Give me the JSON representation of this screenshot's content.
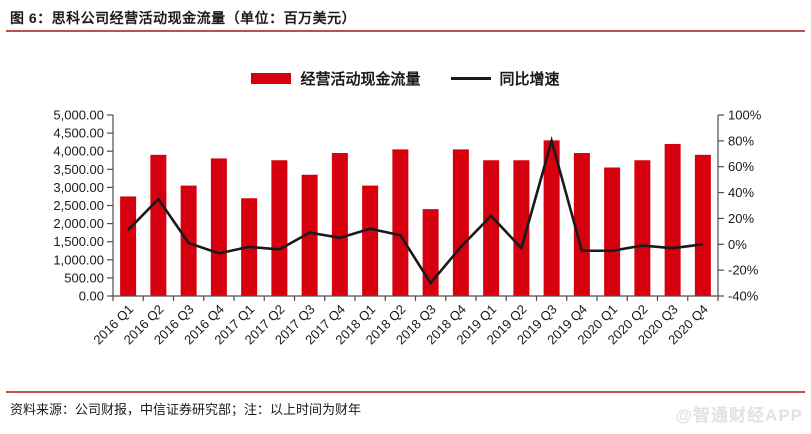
{
  "title": "图 6：思科公司经营活动现金流量（单位：百万美元）",
  "legend": {
    "bar_label": "经营活动现金流量",
    "line_label": "同比增速"
  },
  "footer": {
    "source": "资料来源：公司财报，中信证券研究部；注：以上时间为财年",
    "watermark": "@智通财经APP"
  },
  "colors": {
    "bar": "#d7000f",
    "line": "#1a1a1a",
    "accent_rule": "#c0504d",
    "axis": "#4d4d4d",
    "tick_text": "#1a1a1a",
    "watermark": "#e2e2e2"
  },
  "chart_data": {
    "type": "bar+line",
    "title": "图 6：思科公司经营活动现金流量（单位：百万美元）",
    "categories": [
      "2016 Q1",
      "2016 Q2",
      "2016 Q3",
      "2016 Q4",
      "2017 Q1",
      "2017 Q2",
      "2017 Q3",
      "2017 Q4",
      "2018 Q1",
      "2018 Q2",
      "2018 Q3",
      "2018 Q4",
      "2019 Q1",
      "2019 Q2",
      "2019 Q3",
      "2019 Q4",
      "2020 Q1",
      "2020 Q2",
      "2020 Q3",
      "2020 Q4"
    ],
    "series": [
      {
        "name": "经营活动现金流量",
        "type": "bar",
        "yaxis": "left",
        "values": [
          2750,
          3900,
          3050,
          3800,
          2700,
          3750,
          3350,
          3950,
          3050,
          4050,
          2400,
          4050,
          3750,
          3750,
          4300,
          3950,
          3550,
          3750,
          4200,
          3900
        ]
      },
      {
        "name": "同比增速",
        "type": "line",
        "yaxis": "right",
        "values_percent": [
          11,
          35,
          1,
          -7,
          -2,
          -4,
          9,
          5,
          12,
          7,
          -30,
          -2,
          22,
          -3,
          80,
          -5,
          -5,
          -1,
          -3,
          0
        ]
      }
    ],
    "left_axis": {
      "min": 0,
      "max": 5000,
      "step": 500,
      "tick_format": "#,##0.00"
    },
    "right_axis": {
      "min": -40,
      "max": 100,
      "step": 20,
      "tick_format": "0%"
    },
    "grid": false,
    "legend_position": "top-center",
    "note": "以上时间为财年"
  }
}
